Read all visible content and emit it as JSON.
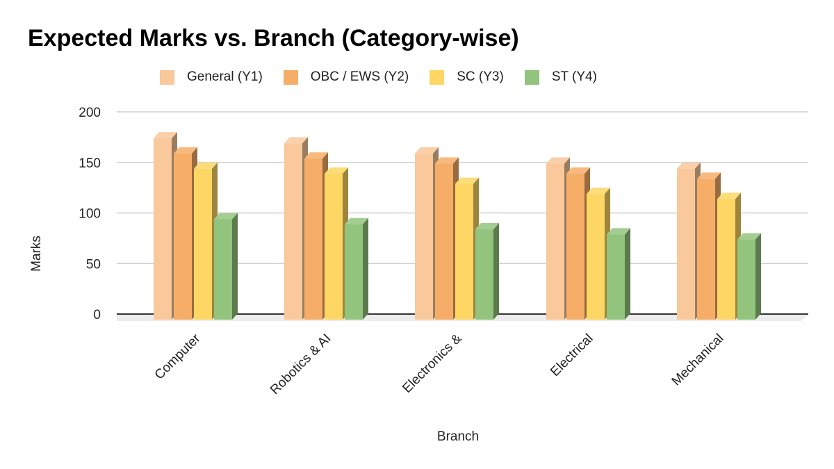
{
  "chart_data": {
    "type": "bar",
    "title": "Expected Marks vs. Branch (Category-wise)",
    "xlabel": "Branch",
    "ylabel": "Marks",
    "ylim": [
      0,
      200
    ],
    "yticks": [
      0,
      50,
      100,
      150,
      200
    ],
    "grid": true,
    "legend_position": "top",
    "style": "3d-column",
    "categories": [
      "Computer",
      "Robotics & AI",
      "Electronics &",
      "Electrical",
      "Mechanical"
    ],
    "series": [
      {
        "name": "General (Y1)",
        "color": "#f9c89b",
        "values": [
          180,
          175,
          165,
          155,
          150
        ]
      },
      {
        "name": "OBC / EWS (Y2)",
        "color": "#f5ad67",
        "values": [
          165,
          160,
          155,
          145,
          140
        ]
      },
      {
        "name": "SC (Y3)",
        "color": "#fdd663",
        "values": [
          150,
          145,
          135,
          125,
          120
        ]
      },
      {
        "name": "ST (Y4)",
        "color": "#93c47d",
        "values": [
          100,
          95,
          90,
          85,
          80
        ]
      }
    ]
  }
}
